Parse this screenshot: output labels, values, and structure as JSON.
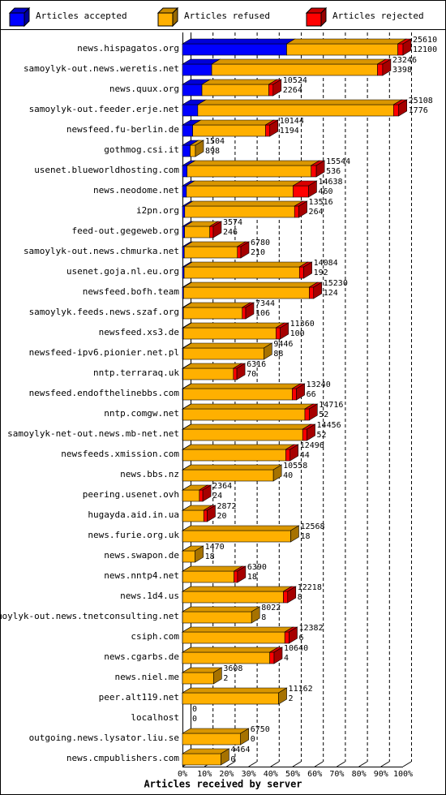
{
  "chart_data": {
    "type": "stacked-bar-3d",
    "title": "Articles received by server",
    "categories": [
      "news.hispagatos.org",
      "samoylyk-out.news.weretis.net",
      "news.quux.org",
      "samoylyk-out.feeder.erje.net",
      "newsfeed.fu-berlin.de",
      "gothmog.csi.it",
      "usenet.blueworldhosting.com",
      "news.neodome.net",
      "i2pn.org",
      "feed-out.gegeweb.org",
      "samoylyk-out.news.chmurka.net",
      "usenet.goja.nl.eu.org",
      "newsfeed.bofh.team",
      "samoylyk.feeds.news.szaf.org",
      "newsfeed.xs3.de",
      "newsfeed-ipv6.pionier.net.pl",
      "nntp.terraraq.uk",
      "newsfeed.endofthelinebbs.com",
      "nntp.comgw.net",
      "samoylyk-net-out.news.mb-net.net",
      "newsfeeds.xmission.com",
      "news.bbs.nz",
      "peering.usenet.ovh",
      "hugayda.aid.in.ua",
      "news.furie.org.uk",
      "news.swapon.de",
      "news.nntp4.net",
      "news.1d4.us",
      "samoylyk-out.news.tnetconsulting.net",
      "csiph.com",
      "news.cgarbs.de",
      "news.niel.me",
      "peer.alt119.net",
      "localhost",
      "outgoing.news.lysator.liu.se",
      "news.cmpublishers.com"
    ],
    "totals": [
      25610,
      23246,
      10524,
      25108,
      10144,
      1504,
      15544,
      14638,
      13516,
      3574,
      6780,
      14084,
      15230,
      7344,
      11360,
      9446,
      6316,
      13240,
      14716,
      14456,
      12496,
      10558,
      2364,
      2872,
      12568,
      1470,
      6390,
      12218,
      8022,
      12382,
      10640,
      3608,
      11162,
      0,
      6750,
      4464
    ],
    "series": [
      {
        "name": "Articles accepted",
        "color": "#0000ff",
        "values": [
          12100,
          3398,
          2264,
          1776,
          1194,
          898,
          536,
          460,
          264,
          246,
          210,
          192,
          124,
          106,
          100,
          88,
          70,
          66,
          52,
          52,
          44,
          40,
          24,
          20,
          18,
          18,
          18,
          8,
          8,
          6,
          4,
          2,
          2,
          0,
          0,
          0
        ]
      },
      {
        "name": "Articles refused",
        "color": "#ffb000",
        "values": [
          12910,
          19248,
          7760,
          22732,
          8450,
          606,
          14408,
          12378,
          12752,
          2928,
          6170,
          13392,
          14606,
          6838,
          10760,
          9358,
          5846,
          12674,
          14164,
          13904,
          11952,
          10518,
          1940,
          2452,
          12550,
          1452,
          5972,
          11710,
          8014,
          11876,
          10136,
          3606,
          11160,
          0,
          6750,
          4464
        ]
      },
      {
        "name": "Articles rejected",
        "color": "#ff0000",
        "values": [
          600,
          600,
          500,
          600,
          500,
          0,
          600,
          1800,
          500,
          400,
          400,
          500,
          500,
          400,
          500,
          0,
          400,
          500,
          500,
          500,
          500,
          0,
          400,
          400,
          0,
          0,
          400,
          500,
          0,
          500,
          500,
          0,
          0,
          0,
          0,
          0
        ]
      }
    ],
    "xlim": [
      0,
      25610
    ],
    "xticks": [
      {
        "value": 0,
        "label": "0%"
      },
      {
        "value": 2561,
        "label": "10%"
      },
      {
        "value": 5122,
        "label": "20%"
      },
      {
        "value": 7683,
        "label": "30%"
      },
      {
        "value": 10244,
        "label": "40%"
      },
      {
        "value": 12805,
        "label": "50%"
      },
      {
        "value": 15366,
        "label": "60%"
      },
      {
        "value": 17927,
        "label": "70%"
      },
      {
        "value": 20488,
        "label": "80%"
      },
      {
        "value": 23049,
        "label": "90%"
      },
      {
        "value": 25610,
        "label": "100%"
      }
    ],
    "grid": true
  }
}
